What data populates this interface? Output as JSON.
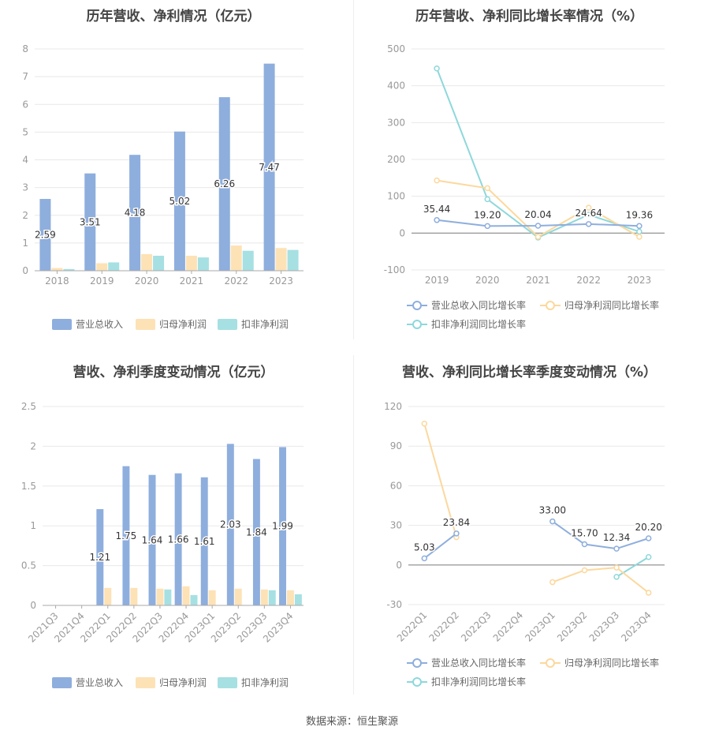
{
  "colors": {
    "revenue": "#8eaedd",
    "net_profit": "#fde2b6",
    "deducted_profit": "#a6e0e2",
    "axis": "#999999",
    "grid": "#e8e8e8"
  },
  "source": "数据来源：恒生聚源",
  "chart_data": [
    {
      "type": "bar",
      "title": "历年营收、净利情况（亿元）",
      "categories": [
        "2018",
        "2019",
        "2020",
        "2021",
        "2022",
        "2023"
      ],
      "ylim": [
        0,
        8
      ],
      "yticks": [
        "0",
        "1",
        "2",
        "3",
        "4",
        "5",
        "6",
        "7",
        "8"
      ],
      "series": [
        {
          "name": "营业总收入",
          "values": [
            2.59,
            3.51,
            4.18,
            5.02,
            6.26,
            7.47
          ],
          "labels": [
            "2.59",
            "3.51",
            "4.18",
            "5.02",
            "6.26",
            "7.47"
          ]
        },
        {
          "name": "归母净利润",
          "values": [
            0.1,
            0.27,
            0.6,
            0.54,
            0.91,
            0.82
          ]
        },
        {
          "name": "扣非净利润",
          "values": [
            0.06,
            0.3,
            0.54,
            0.48,
            0.72,
            0.75
          ]
        }
      ],
      "legend": "bottom"
    },
    {
      "type": "line",
      "title": "历年营收、净利同比增长率情况（%）",
      "categories": [
        "2019",
        "2020",
        "2021",
        "2022",
        "2023"
      ],
      "ylim": [
        -100,
        500
      ],
      "yticks": [
        "-100",
        "0",
        "100",
        "200",
        "300",
        "400",
        "500"
      ],
      "series": [
        {
          "name": "营业总收入同比增长率",
          "values": [
            35.44,
            19.2,
            20.04,
            24.64,
            19.36
          ],
          "labels": [
            "35.44",
            "19.20",
            "20.04",
            "24.64",
            "19.36"
          ]
        },
        {
          "name": "归母净利润同比增长率",
          "values": [
            143,
            122,
            -10,
            69,
            -10
          ]
        },
        {
          "name": "扣非净利润同比增长率",
          "values": [
            447,
            92,
            -12,
            50,
            4
          ]
        }
      ],
      "legend": "bottom"
    },
    {
      "type": "bar",
      "title": "营收、净利季度变动情况（亿元）",
      "categories": [
        "2021Q3",
        "2021Q4",
        "2022Q1",
        "2022Q2",
        "2022Q3",
        "2022Q4",
        "2023Q1",
        "2023Q2",
        "2023Q3",
        "2023Q4"
      ],
      "ylim": [
        0,
        2.5
      ],
      "yticks": [
        "0",
        "0.5",
        "1",
        "1.5",
        "2",
        "2.5"
      ],
      "series": [
        {
          "name": "营业总收入",
          "values": [
            null,
            null,
            1.21,
            1.75,
            1.64,
            1.66,
            1.61,
            2.03,
            1.84,
            1.99
          ],
          "labels": [
            "",
            "",
            "1.21",
            "1.75",
            "1.64",
            "1.66",
            "1.61",
            "2.03",
            "1.84",
            "1.99"
          ]
        },
        {
          "name": "归母净利润",
          "values": [
            null,
            null,
            0.22,
            0.22,
            0.21,
            0.24,
            0.19,
            0.21,
            0.2,
            0.19
          ]
        },
        {
          "name": "扣非净利润",
          "values": [
            null,
            null,
            null,
            null,
            0.2,
            0.13,
            null,
            null,
            0.19,
            0.14
          ]
        }
      ],
      "legend": "bottom"
    },
    {
      "type": "line",
      "title": "营收、净利同比增长率季度变动情况（%）",
      "categories": [
        "2022Q1",
        "2022Q2",
        "2022Q3",
        "2022Q4",
        "2023Q1",
        "2023Q2",
        "2023Q3",
        "2023Q4"
      ],
      "ylim": [
        -30,
        120
      ],
      "yticks": [
        "-30",
        "0",
        "30",
        "60",
        "90",
        "120"
      ],
      "series": [
        {
          "name": "营业总收入同比增长率",
          "values": [
            5.03,
            23.84,
            null,
            null,
            33.0,
            15.7,
            12.34,
            20.2
          ],
          "labels": [
            "5.03",
            "23.84",
            "",
            "",
            "33.00",
            "15.70",
            "12.34",
            "20.20"
          ]
        },
        {
          "name": "归母净利润同比增长率",
          "values": [
            107,
            21,
            null,
            null,
            -13,
            -4,
            -2,
            -21
          ]
        },
        {
          "name": "扣非净利润同比增长率",
          "values": [
            null,
            null,
            null,
            null,
            null,
            null,
            -9,
            6
          ]
        }
      ],
      "legend": "bottom"
    }
  ]
}
